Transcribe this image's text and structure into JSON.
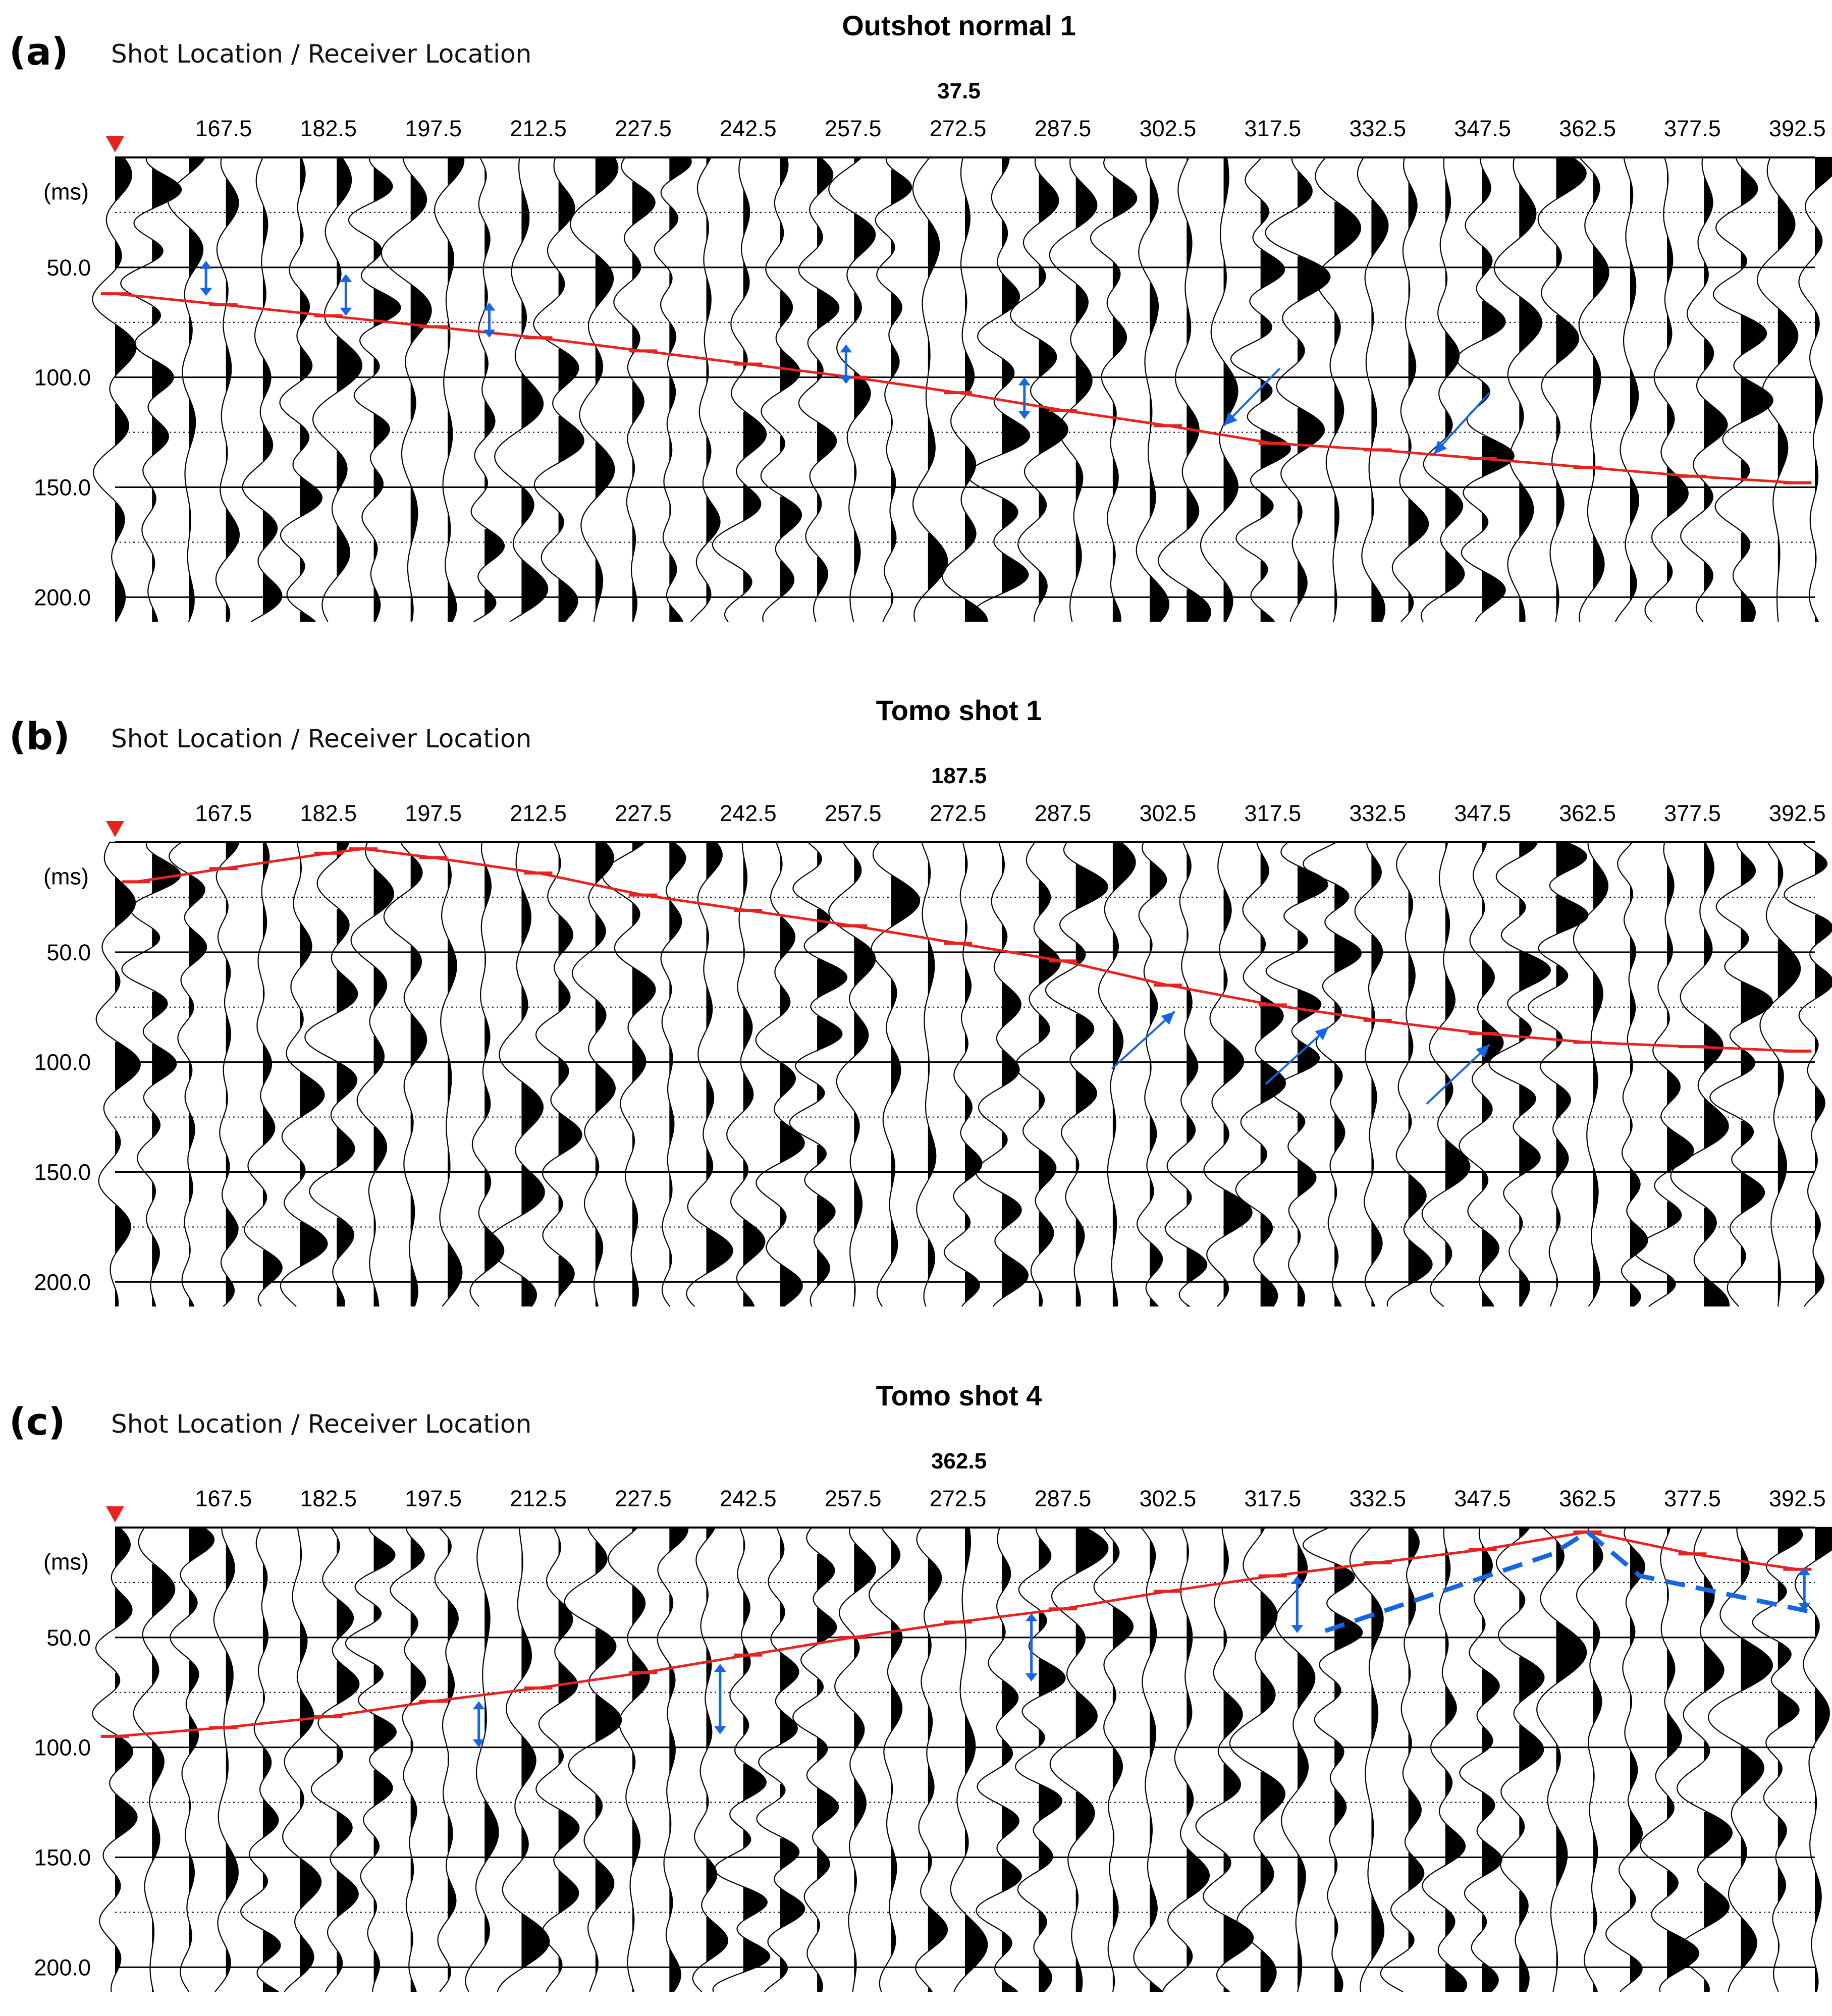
{
  "figure": {
    "colors": {
      "pick": "#e8231f",
      "annotation": "#1466e6",
      "trace": "#000000",
      "grid": "#000000"
    }
  },
  "chart_data": [
    {
      "type": "line",
      "panel_label": "(a)",
      "title": "Outshot normal 1",
      "xlabel": "Shot Location / Receiver Location",
      "shot_location": "37.5",
      "shot_marker_x": 152,
      "unit_label": "(ms)",
      "x_ticks": [
        "167.5",
        "182.5",
        "197.5",
        "212.5",
        "227.5",
        "242.5",
        "257.5",
        "272.5",
        "287.5",
        "302.5",
        "317.5",
        "332.5",
        "347.5",
        "362.5",
        "377.5",
        "392.5"
      ],
      "y_ticks": [
        "50.0",
        "100.0",
        "150.0",
        "200.0"
      ],
      "xlim": [
        152,
        395
      ],
      "ylim": [
        0,
        213
      ],
      "grid": true,
      "first_break_picks": {
        "name": "",
        "x": [
          152,
          167.5,
          182.5,
          197.5,
          212.5,
          227.5,
          242.5,
          257.5,
          272.5,
          287.5,
          302.5,
          317.5,
          332.5,
          347.5,
          362.5,
          377.5,
          392.5
        ],
        "y": [
          62,
          67,
          72,
          77,
          82,
          88,
          94,
          100,
          107,
          115,
          122,
          130,
          133,
          137,
          141,
          145,
          148
        ]
      },
      "annotations": [
        {
          "shape": "double-arrow",
          "x": 165.0,
          "y": [
            47,
            63
          ]
        },
        {
          "shape": "double-arrow",
          "x": 185.0,
          "y": [
            53,
            72
          ]
        },
        {
          "shape": "double-arrow",
          "x": 205.5,
          "y": [
            66,
            82
          ]
        },
        {
          "shape": "double-arrow",
          "x": 256.5,
          "y": [
            85,
            103
          ]
        },
        {
          "shape": "double-arrow",
          "x": 282.0,
          "y": [
            100,
            119
          ]
        },
        {
          "shape": "arrow",
          "from": [
            318.5,
            96
          ],
          "to": [
            310.5,
            122
          ]
        },
        {
          "shape": "arrow",
          "from": [
            348.5,
            107
          ],
          "to": [
            340.5,
            135
          ]
        }
      ]
    },
    {
      "type": "line",
      "panel_label": "(b)",
      "title": "Tomo shot 1",
      "xlabel": "Shot Location / Receiver Location",
      "shot_location": "187.5",
      "shot_marker_x": 152,
      "unit_label": "(ms)",
      "x_ticks": [
        "167.5",
        "182.5",
        "197.5",
        "212.5",
        "227.5",
        "242.5",
        "257.5",
        "272.5",
        "287.5",
        "302.5",
        "317.5",
        "332.5",
        "347.5",
        "362.5",
        "377.5",
        "392.5"
      ],
      "y_ticks": [
        "50.0",
        "100.0",
        "150.0",
        "200.0"
      ],
      "xlim": [
        152,
        395
      ],
      "ylim": [
        0,
        213
      ],
      "grid": true,
      "first_break_picks": {
        "name": "",
        "x": [
          155,
          167.5,
          182.5,
          187.5,
          197.5,
          212.5,
          227.5,
          242.5,
          257.5,
          272.5,
          287.5,
          302.5,
          317.5,
          332.5,
          347.5,
          362.5,
          377.5,
          392.5
        ],
        "y": [
          18,
          12,
          5,
          3,
          7,
          14,
          24,
          31,
          38,
          46,
          54,
          65,
          74,
          81,
          87,
          91,
          93,
          95
        ]
      },
      "annotations": [
        {
          "shape": "arrow",
          "from": [
            294.5,
            103
          ],
          "to": [
            303.5,
            77
          ]
        },
        {
          "shape": "arrow",
          "from": [
            316.5,
            110
          ],
          "to": [
            325.5,
            84
          ]
        },
        {
          "shape": "arrow",
          "from": [
            339.5,
            119
          ],
          "to": [
            348.5,
            92
          ]
        }
      ]
    },
    {
      "type": "line",
      "panel_label": "(c)",
      "title": "Tomo shot 4",
      "xlabel": "Shot Location / Receiver Location",
      "shot_location": "362.5",
      "shot_marker_x": 152,
      "unit_label": "(ms)",
      "x_ticks": [
        "167.5",
        "182.5",
        "197.5",
        "212.5",
        "227.5",
        "242.5",
        "257.5",
        "272.5",
        "287.5",
        "302.5",
        "317.5",
        "332.5",
        "347.5",
        "362.5",
        "377.5",
        "392.5"
      ],
      "y_ticks": [
        "50.0",
        "100.0",
        "150.0",
        "200.0"
      ],
      "xlim": [
        152,
        395
      ],
      "ylim": [
        0,
        213
      ],
      "grid": true,
      "first_break_picks": {
        "name": "",
        "x": [
          152,
          167.5,
          182.5,
          197.5,
          212.5,
          227.5,
          242.5,
          257.5,
          272.5,
          287.5,
          302.5,
          317.5,
          332.5,
          347.5,
          362.5,
          377.5,
          392.5
        ],
        "y": [
          95,
          91,
          86,
          79,
          73,
          66,
          58,
          50,
          43,
          37,
          29,
          22,
          16,
          10,
          2,
          12,
          19
        ]
      },
      "dashed_line": {
        "x": [
          325,
          357.5,
          362.5,
          370,
          394
        ],
        "y": [
          47,
          12,
          2,
          22,
          38
        ]
      },
      "annotations": [
        {
          "shape": "double-arrow",
          "x": 204.0,
          "y": [
            79,
            100
          ]
        },
        {
          "shape": "double-arrow",
          "x": 238.5,
          "y": [
            62,
            94
          ]
        },
        {
          "shape": "double-arrow",
          "x": 283.0,
          "y": [
            39,
            70
          ]
        },
        {
          "shape": "double-arrow",
          "x": 321.0,
          "y": [
            22,
            48
          ]
        },
        {
          "shape": "double-arrow",
          "x": 393.5,
          "y": [
            18,
            38
          ]
        }
      ]
    }
  ]
}
